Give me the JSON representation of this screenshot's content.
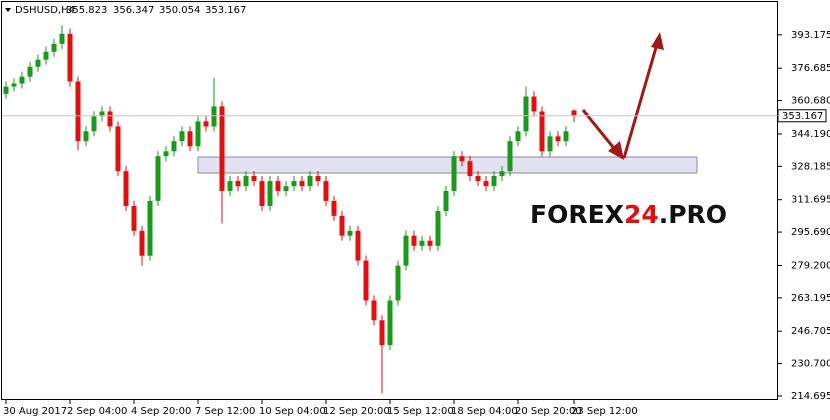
{
  "chart_data": {
    "type": "candlestick",
    "symbol": "DSHUSD,H4",
    "watermark": [
      "FOREX",
      "24",
      ".PRO"
    ],
    "up_color": "#1a9a1a",
    "down_color": "#e01010",
    "categories": [
      "30 Aug 2017",
      null,
      null,
      null,
      null,
      null,
      null,
      null,
      "2 Sep 04:00",
      null,
      null,
      null,
      null,
      null,
      null,
      null,
      "4 Sep 20:00",
      null,
      null,
      null,
      null,
      null,
      null,
      null,
      "7 Sep 12:00",
      null,
      null,
      null,
      null,
      null,
      null,
      null,
      "10 Sep 04:00",
      null,
      null,
      null,
      null,
      null,
      null,
      null,
      "12 Sep 20:00",
      null,
      null,
      null,
      null,
      null,
      null,
      null,
      "15 Sep 12:00",
      null,
      null,
      null,
      null,
      null,
      null,
      null,
      "18 Sep 04:00",
      null,
      null,
      null,
      null,
      null,
      null,
      null,
      "20 Sep 20:00",
      null,
      null,
      null,
      null,
      null,
      null,
      "23 Sep 12:00"
    ],
    "candles": {
      "open": [
        364.0,
        367.6,
        369.1,
        372.5,
        377.4,
        380.9,
        384.8,
        388.7,
        393.7,
        370.1,
        340.6,
        345.5,
        352.9,
        355.3,
        347.9,
        325.8,
        308.6,
        296.3,
        284.0,
        311.1,
        333.2,
        335.6,
        340.6,
        345.5,
        338.1,
        350.4,
        347.9,
        357.8,
        316.0,
        320.9,
        318.4,
        323.4,
        320.9,
        308.6,
        320.9,
        316.0,
        318.4,
        320.9,
        318.4,
        323.4,
        320.9,
        311.1,
        303.7,
        293.9,
        296.3,
        281.6,
        261.9,
        252.1,
        239.8,
        261.9,
        279.1,
        293.9,
        288.9,
        291.4,
        288.9,
        306.1,
        316.0,
        333.2,
        330.7,
        323.4,
        320.9,
        318.4,
        323.4,
        325.8,
        340.6,
        345.5,
        362.7,
        355.3,
        335.6,
        343.0,
        340.6,
        355.823
      ],
      "high": [
        370.1,
        371.6,
        375.0,
        379.9,
        383.4,
        387.3,
        391.2,
        398.0,
        396.2,
        372.6,
        348.0,
        355.4,
        357.8,
        357.8,
        350.4,
        328.3,
        311.1,
        298.8,
        313.6,
        335.7,
        338.1,
        343.1,
        348.0,
        348.0,
        352.9,
        352.9,
        372.0,
        360.3,
        323.4,
        323.4,
        325.9,
        325.9,
        323.4,
        323.4,
        323.4,
        320.9,
        323.4,
        323.4,
        325.9,
        325.9,
        323.4,
        313.6,
        306.2,
        298.8,
        298.8,
        284.1,
        264.4,
        254.6,
        264.4,
        281.6,
        296.4,
        296.4,
        293.9,
        293.9,
        308.6,
        318.5,
        335.7,
        335.7,
        333.2,
        325.9,
        323.4,
        325.9,
        328.3,
        343.1,
        348.0,
        367.5,
        365.2,
        357.8,
        345.5,
        345.5,
        348.0,
        356.347
      ],
      "low": [
        361.5,
        365.1,
        366.6,
        370.0,
        374.9,
        378.4,
        382.3,
        386.2,
        367.6,
        336.1,
        338.1,
        343.0,
        350.4,
        345.4,
        323.3,
        306.1,
        293.8,
        279.0,
        281.5,
        308.6,
        330.7,
        333.1,
        338.1,
        335.6,
        335.6,
        345.4,
        345.4,
        300.0,
        313.5,
        315.9,
        315.9,
        318.4,
        306.1,
        306.1,
        313.5,
        313.5,
        315.9,
        315.9,
        315.9,
        318.4,
        308.6,
        301.2,
        291.4,
        291.4,
        279.1,
        259.4,
        249.6,
        216.0,
        237.3,
        259.4,
        276.6,
        286.4,
        286.4,
        286.4,
        286.4,
        303.6,
        313.5,
        328.2,
        320.9,
        318.4,
        315.9,
        315.9,
        320.9,
        323.3,
        338.1,
        343.0,
        352.8,
        333.1,
        333.1,
        338.1,
        338.1,
        350.054
      ],
      "close": [
        367.6,
        369.1,
        372.5,
        377.4,
        380.9,
        384.8,
        388.7,
        393.7,
        370.1,
        340.6,
        345.5,
        352.9,
        355.3,
        347.9,
        325.8,
        308.6,
        296.3,
        284.0,
        311.1,
        333.2,
        335.6,
        340.6,
        345.5,
        338.1,
        350.4,
        347.9,
        357.8,
        316.0,
        320.9,
        318.4,
        323.4,
        320.9,
        308.6,
        320.9,
        316.0,
        318.4,
        320.9,
        318.4,
        323.4,
        320.9,
        311.1,
        303.7,
        293.9,
        296.3,
        281.6,
        261.9,
        252.1,
        239.8,
        261.9,
        279.1,
        293.9,
        288.9,
        291.4,
        288.9,
        306.1,
        316.0,
        333.2,
        330.7,
        323.4,
        320.9,
        318.4,
        323.4,
        325.8,
        340.6,
        345.5,
        362.7,
        355.3,
        335.6,
        343.0,
        340.6,
        345.5,
        353.167
      ]
    },
    "ylim": [
      212.7,
      409.4
    ],
    "yticks": [
      393.175,
      376.685,
      {
        "value": 360.68,
        "label": "360.680"
      },
      {
        "value": 344.19,
        "label": "344.190"
      },
      328.185,
      311.695,
      {
        "value": 295.69,
        "label": "295.690"
      },
      {
        "value": 279.2,
        "label": "279.200"
      },
      263.195,
      246.705,
      {
        "value": 230.7,
        "label": "230.700"
      },
      214.695
    ]
  }
}
